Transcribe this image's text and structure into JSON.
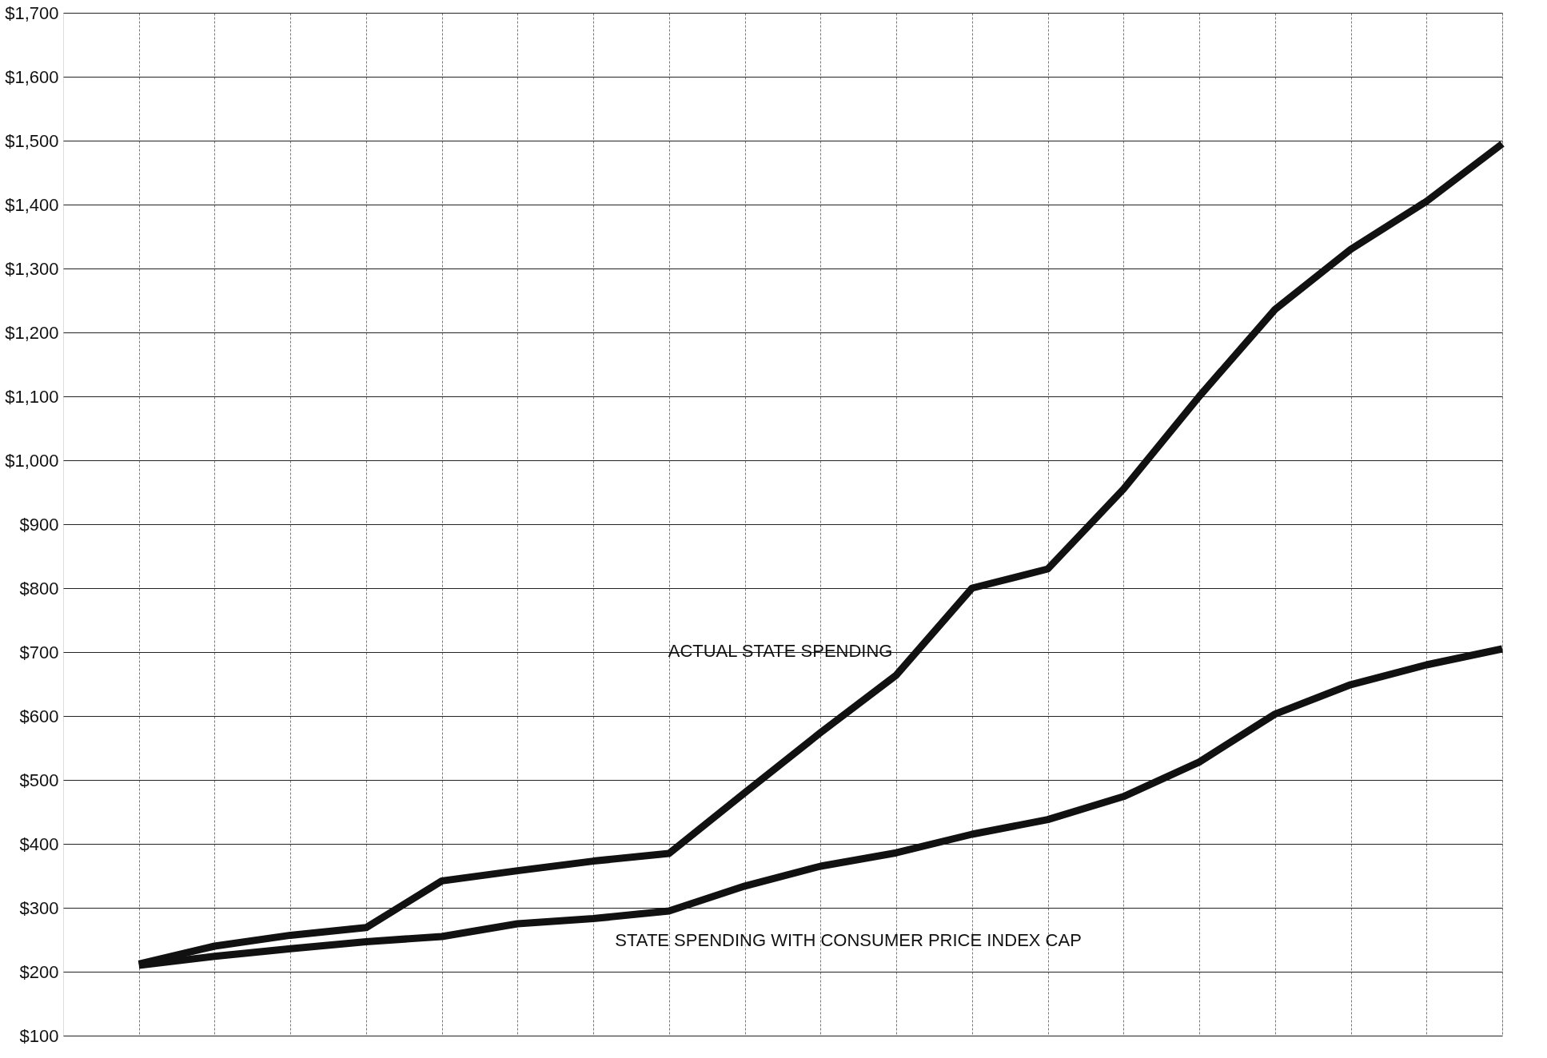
{
  "chart_data": {
    "type": "line",
    "categories": [
      null,
      null,
      null,
      null,
      null,
      null,
      null,
      null,
      null,
      null,
      null,
      null,
      null,
      null,
      null,
      null,
      null,
      null,
      null
    ],
    "series": [
      {
        "name": "ACTUAL STATE SPENDING",
        "color": "#111111",
        "values": [
          212,
          240,
          257,
          269,
          342,
          358,
          373,
          385,
          480,
          574,
          664,
          800,
          830,
          955,
          1100,
          1236,
          1330,
          1405,
          1495
        ]
      },
      {
        "name": "STATE SPENDING WITH CONSUMER PRICE INDEX CAP",
        "color": "#111111",
        "values": [
          210,
          224,
          236,
          247,
          255,
          275,
          283,
          295,
          334,
          365,
          386,
          415,
          438,
          474,
          528,
          603,
          649,
          680,
          705
        ]
      }
    ],
    "ylim": [
      100,
      1700
    ],
    "yticks": [
      {
        "value": 100,
        "label": "$100"
      },
      {
        "value": 200,
        "label": "$200"
      },
      {
        "value": 300,
        "label": "$300"
      },
      {
        "value": 400,
        "label": "$400"
      },
      {
        "value": 500,
        "label": "$500"
      },
      {
        "value": 600,
        "label": "$600"
      },
      {
        "value": 700,
        "label": "$700"
      },
      {
        "value": 800,
        "label": "$800"
      },
      {
        "value": 900,
        "label": "$900"
      },
      {
        "value": 1000,
        "label": "$1,000"
      },
      {
        "value": 1100,
        "label": "$1,100"
      },
      {
        "value": 1200,
        "label": "$1,200"
      },
      {
        "value": 1300,
        "label": "$1,300"
      },
      {
        "value": 1400,
        "label": "$1,400"
      },
      {
        "value": 1500,
        "label": "$1,500"
      },
      {
        "value": 1600,
        "label": "$1,600"
      },
      {
        "value": 1700,
        "label": "$1,700"
      }
    ],
    "grid": true,
    "tick_labels": "y",
    "marker": "none",
    "line_style": "solid"
  }
}
